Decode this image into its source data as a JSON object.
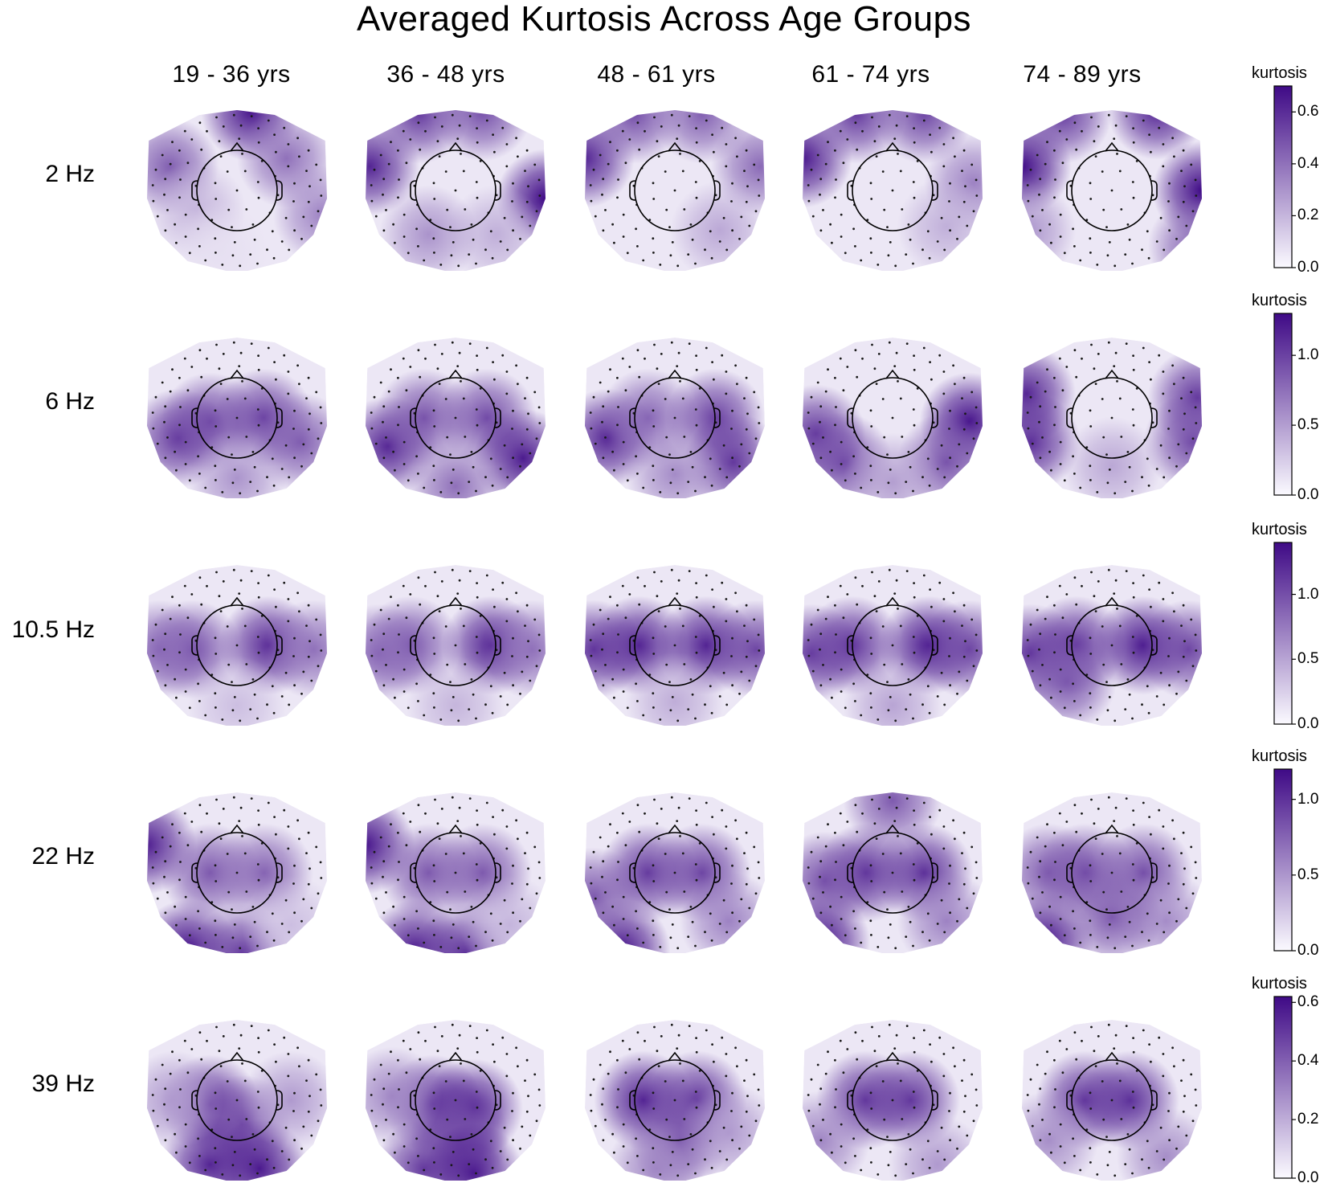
{
  "title": "Averaged Kurtosis Across Age Groups",
  "colormap": {
    "low": "#fbfaff",
    "high": "#3f0a86",
    "outline": "#000000",
    "sensor": "#1a1a1a"
  },
  "chart_data": {
    "type": "heatmap",
    "subtype": "topographic scalp maps (grid of age groups x frequencies)",
    "title": "Averaged Kurtosis Across Age Groups",
    "columns": [
      "19 - 36 yrs",
      "36 - 48 yrs",
      "48 - 61 yrs",
      "61 - 74 yrs",
      "74 - 89 yrs"
    ],
    "rows": [
      {
        "label": "2 Hz",
        "colorbar": {
          "label": "kurtosis",
          "range": [
            0,
            0.7
          ],
          "ticks": [
            "0.0",
            "0.2",
            "0.4",
            "0.6"
          ],
          "tick_values": [
            0,
            0.2,
            0.4,
            0.6
          ]
        },
        "hotspots": [
          [
            {
              "u": 0.15,
              "v": -0.98,
              "val": 0.66
            },
            {
              "u": -0.75,
              "v": -0.3,
              "val": 0.45
            },
            {
              "u": 0.55,
              "v": -0.4,
              "val": 0.4
            },
            {
              "u": -0.45,
              "v": 0.25,
              "val": 0.2
            },
            {
              "u": 0.95,
              "v": 0.3,
              "val": 0.35
            },
            {
              "u": -0.2,
              "v": 0.75,
              "val": 0.08
            }
          ],
          [
            {
              "u": -0.95,
              "v": -0.3,
              "val": 0.62
            },
            {
              "u": -0.4,
              "v": -0.95,
              "val": 0.55
            },
            {
              "u": 0.3,
              "v": -0.98,
              "val": 0.5
            },
            {
              "u": 1.0,
              "v": 0.1,
              "val": 0.7
            },
            {
              "u": 0.45,
              "v": 0.55,
              "val": 0.22
            },
            {
              "u": -0.3,
              "v": 0.55,
              "val": 0.3
            }
          ],
          [
            {
              "u": -1.0,
              "v": -0.4,
              "val": 0.62
            },
            {
              "u": -0.45,
              "v": -0.95,
              "val": 0.5
            },
            {
              "u": 0.3,
              "v": -0.95,
              "val": 0.45
            },
            {
              "u": 0.95,
              "v": -0.3,
              "val": 0.42
            },
            {
              "u": 0.5,
              "v": 0.5,
              "val": 0.24
            }
          ],
          [
            {
              "u": -1.0,
              "v": -0.4,
              "val": 0.66
            },
            {
              "u": -0.4,
              "v": -0.95,
              "val": 0.55
            },
            {
              "u": 0.35,
              "v": -0.95,
              "val": 0.52
            },
            {
              "u": 0.9,
              "v": -0.1,
              "val": 0.35
            },
            {
              "u": 0.6,
              "v": 0.45,
              "val": 0.22
            }
          ],
          [
            {
              "u": -1.0,
              "v": -0.3,
              "val": 0.7
            },
            {
              "u": -0.55,
              "v": -0.95,
              "val": 0.55
            },
            {
              "u": 0.5,
              "v": -1.0,
              "val": 0.62
            },
            {
              "u": 1.0,
              "v": 0.0,
              "val": 0.7
            },
            {
              "u": 0.95,
              "v": 0.7,
              "val": 0.45
            },
            {
              "u": -0.95,
              "v": 0.5,
              "val": 0.3
            }
          ]
        ]
      },
      {
        "label": "6 Hz",
        "colorbar": {
          "label": "kurtosis",
          "range": [
            0,
            1.3
          ],
          "ticks": [
            "0.0",
            "0.5",
            "1.0"
          ],
          "tick_values": [
            0,
            0.5,
            1.0
          ]
        },
        "hotspots": [
          [
            {
              "u": -0.65,
              "v": 0.25,
              "val": 1.05
            },
            {
              "u": -0.3,
              "v": 0.05,
              "val": 0.95
            },
            {
              "u": 0.3,
              "v": 0.0,
              "val": 1.0
            },
            {
              "u": 0.7,
              "v": 0.3,
              "val": 0.85
            },
            {
              "u": 0.0,
              "v": 0.75,
              "val": 0.55
            }
          ],
          [
            {
              "u": -0.75,
              "v": 0.35,
              "val": 1.15
            },
            {
              "u": -0.35,
              "v": 0.0,
              "val": 0.9
            },
            {
              "u": 0.35,
              "v": 0.0,
              "val": 0.95
            },
            {
              "u": 0.75,
              "v": 0.5,
              "val": 1.2
            },
            {
              "u": 0.0,
              "v": 0.85,
              "val": 0.75
            }
          ],
          [
            {
              "u": -0.75,
              "v": 0.25,
              "val": 1.15
            },
            {
              "u": -0.3,
              "v": 0.0,
              "val": 0.8
            },
            {
              "u": 0.45,
              "v": 0.0,
              "val": 1.0
            },
            {
              "u": 0.65,
              "v": 0.55,
              "val": 1.05
            },
            {
              "u": 0.0,
              "v": 0.7,
              "val": 0.6
            }
          ],
          [
            {
              "u": -0.85,
              "v": 0.2,
              "val": 1.05
            },
            {
              "u": -0.55,
              "v": 0.55,
              "val": 0.95
            },
            {
              "u": 0.85,
              "v": 0.05,
              "val": 1.25
            },
            {
              "u": 0.6,
              "v": 0.55,
              "val": 0.9
            },
            {
              "u": 0.0,
              "v": 0.8,
              "val": 0.5
            }
          ],
          [
            {
              "u": -0.95,
              "v": -0.3,
              "val": 1.15
            },
            {
              "u": -0.9,
              "v": 0.3,
              "val": 1.1
            },
            {
              "u": 0.95,
              "v": -0.25,
              "val": 1.05
            },
            {
              "u": 0.9,
              "v": 0.3,
              "val": 0.95
            },
            {
              "u": 0.0,
              "v": 0.6,
              "val": 0.45
            }
          ]
        ]
      },
      {
        "label": "10.5 Hz",
        "colorbar": {
          "label": "kurtosis",
          "range": [
            0,
            1.4
          ],
          "ticks": [
            "0.0",
            "0.5",
            "1.0"
          ],
          "tick_values": [
            0,
            0.5,
            1.0
          ]
        },
        "hotspots": [
          [
            {
              "u": -0.5,
              "v": 0.05,
              "val": 1.0
            },
            {
              "u": 0.35,
              "v": 0.0,
              "val": 1.2
            },
            {
              "u": -0.85,
              "v": 0.05,
              "val": 0.85
            },
            {
              "u": 0.85,
              "v": 0.05,
              "val": 0.8
            },
            {
              "u": 0.0,
              "v": 0.75,
              "val": 0.35
            }
          ],
          [
            {
              "u": -0.5,
              "v": 0.0,
              "val": 0.95
            },
            {
              "u": 0.4,
              "v": 0.0,
              "val": 1.25
            },
            {
              "u": -0.85,
              "v": 0.1,
              "val": 0.85
            },
            {
              "u": 0.85,
              "v": 0.05,
              "val": 0.8
            },
            {
              "u": 0.0,
              "v": 0.75,
              "val": 0.4
            }
          ],
          [
            {
              "u": -0.4,
              "v": 0.0,
              "val": 1.25
            },
            {
              "u": 0.35,
              "v": 0.0,
              "val": 1.25
            },
            {
              "u": -0.9,
              "v": 0.05,
              "val": 1.15
            },
            {
              "u": 0.9,
              "v": 0.05,
              "val": 1.05
            },
            {
              "u": 0.0,
              "v": 0.7,
              "val": 0.45
            }
          ],
          [
            {
              "u": -0.45,
              "v": 0.0,
              "val": 1.15
            },
            {
              "u": 0.4,
              "v": 0.0,
              "val": 1.3
            },
            {
              "u": -0.9,
              "v": 0.1,
              "val": 1.1
            },
            {
              "u": 0.85,
              "v": 0.05,
              "val": 1.05
            },
            {
              "u": 0.0,
              "v": 0.75,
              "val": 0.5
            }
          ],
          [
            {
              "u": -0.4,
              "v": 0.0,
              "val": 1.15
            },
            {
              "u": 0.35,
              "v": 0.0,
              "val": 1.3
            },
            {
              "u": -0.9,
              "v": 0.1,
              "val": 1.15
            },
            {
              "u": 0.85,
              "v": 0.05,
              "val": 1.05
            },
            {
              "u": -0.5,
              "v": 0.45,
              "val": 0.95
            }
          ]
        ]
      },
      {
        "label": "22 Hz",
        "colorbar": {
          "label": "kurtosis",
          "range": [
            0,
            1.2
          ],
          "ticks": [
            "0.0",
            "0.5",
            "1.0"
          ],
          "tick_values": [
            0,
            0.5,
            1.0
          ]
        },
        "hotspots": [
          [
            {
              "u": -1.0,
              "v": -0.35,
              "val": 1.1
            },
            {
              "u": -0.55,
              "v": 0.95,
              "val": 1.15
            },
            {
              "u": 0.05,
              "v": 1.0,
              "val": 0.95
            },
            {
              "u": -0.3,
              "v": 0.0,
              "val": 0.8
            },
            {
              "u": 0.3,
              "v": 0.0,
              "val": 0.75
            },
            {
              "u": 0.6,
              "v": 0.65,
              "val": 0.3
            }
          ],
          [
            {
              "u": -1.0,
              "v": -0.35,
              "val": 1.15
            },
            {
              "u": -0.45,
              "v": 0.95,
              "val": 1.1
            },
            {
              "u": 0.1,
              "v": 1.0,
              "val": 1.0
            },
            {
              "u": -0.3,
              "v": 0.0,
              "val": 0.8
            },
            {
              "u": 0.3,
              "v": 0.0,
              "val": 0.8
            },
            {
              "u": 0.6,
              "v": 0.65,
              "val": 0.35
            }
          ],
          [
            {
              "u": -0.6,
              "v": 0.95,
              "val": 1.15
            },
            {
              "u": -0.3,
              "v": 0.0,
              "val": 0.95
            },
            {
              "u": 0.3,
              "v": 0.0,
              "val": 0.9
            },
            {
              "u": 0.6,
              "v": 0.6,
              "val": 0.6
            },
            {
              "u": -0.9,
              "v": 0.3,
              "val": 0.8
            }
          ],
          [
            {
              "u": -0.8,
              "v": 0.85,
              "val": 1.15
            },
            {
              "u": -0.3,
              "v": 0.0,
              "val": 1.0
            },
            {
              "u": 0.35,
              "v": 0.0,
              "val": 1.0
            },
            {
              "u": -0.75,
              "v": 0.1,
              "val": 0.85
            },
            {
              "u": 0.0,
              "v": -0.9,
              "val": 0.8
            },
            {
              "u": 0.6,
              "v": 0.6,
              "val": 0.6
            }
          ],
          [
            {
              "u": -0.75,
              "v": 0.85,
              "val": 1.15
            },
            {
              "u": -0.3,
              "v": 0.0,
              "val": 0.9
            },
            {
              "u": 0.35,
              "v": 0.0,
              "val": 0.85
            },
            {
              "u": -0.7,
              "v": 0.0,
              "val": 0.8
            },
            {
              "u": 0.6,
              "v": 0.6,
              "val": 0.55
            },
            {
              "u": 0.0,
              "v": 0.55,
              "val": 0.8
            }
          ]
        ]
      },
      {
        "label": "39 Hz",
        "colorbar": {
          "label": "kurtosis",
          "range": [
            0,
            0.62
          ],
          "ticks": [
            "0.0",
            "0.2",
            "0.4",
            "0.6"
          ],
          "tick_values": [
            0,
            0.2,
            0.4,
            0.6
          ]
        },
        "hotspots": [
          [
            {
              "u": -0.3,
              "v": 0.05,
              "val": 0.5
            },
            {
              "u": 0.05,
              "v": 0.3,
              "val": 0.45
            },
            {
              "u": -0.3,
              "v": 0.8,
              "val": 0.55
            },
            {
              "u": 0.25,
              "v": 0.85,
              "val": 0.58
            },
            {
              "u": 0.6,
              "v": 0.0,
              "val": 0.25
            },
            {
              "u": -0.7,
              "v": 0.0,
              "val": 0.25
            }
          ],
          [
            {
              "u": -0.25,
              "v": 0.05,
              "val": 0.52
            },
            {
              "u": 0.2,
              "v": 0.1,
              "val": 0.55
            },
            {
              "u": 0.05,
              "v": 0.45,
              "val": 0.45
            },
            {
              "u": -0.35,
              "v": 0.85,
              "val": 0.5
            },
            {
              "u": 0.2,
              "v": 0.9,
              "val": 0.58
            },
            {
              "u": -0.7,
              "v": -0.05,
              "val": 0.3
            }
          ],
          [
            {
              "u": -0.35,
              "v": 0.0,
              "val": 0.55
            },
            {
              "u": 0.25,
              "v": 0.0,
              "val": 0.5
            },
            {
              "u": 0.05,
              "v": 0.5,
              "val": 0.45
            },
            {
              "u": -0.2,
              "v": 0.85,
              "val": 0.3
            },
            {
              "u": 0.6,
              "v": 0.4,
              "val": 0.25
            }
          ],
          [
            {
              "u": -0.3,
              "v": 0.0,
              "val": 0.5
            },
            {
              "u": 0.2,
              "v": 0.0,
              "val": 0.5
            },
            {
              "u": -0.8,
              "v": 0.5,
              "val": 0.3
            },
            {
              "u": 0.5,
              "v": 0.8,
              "val": 0.25
            }
          ],
          [
            {
              "u": -0.3,
              "v": 0.0,
              "val": 0.5
            },
            {
              "u": 0.2,
              "v": 0.0,
              "val": 0.52
            },
            {
              "u": -0.7,
              "v": 0.5,
              "val": 0.28
            },
            {
              "u": 0.6,
              "v": 0.7,
              "val": 0.28
            }
          ]
        ]
      }
    ]
  }
}
